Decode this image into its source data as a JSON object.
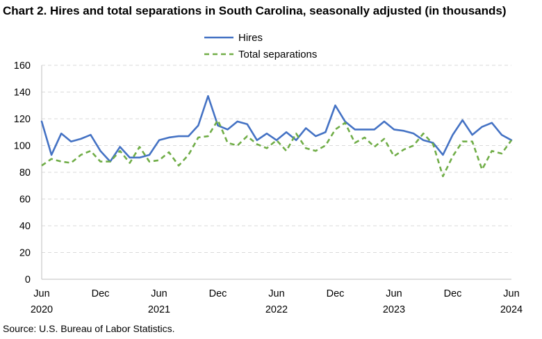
{
  "title": "Chart 2. Hires and total separations in South Carolina, seasonally adjusted (in thousands)",
  "source": "Source: U.S. Bureau of Labor Statistics.",
  "chart_data": {
    "type": "line",
    "title": "Chart 2. Hires and total separations in South Carolina, seasonally adjusted (in thousands)",
    "xlabel": "",
    "ylabel": "",
    "ylim": [
      0,
      160
    ],
    "yticks": [
      0,
      20,
      40,
      60,
      80,
      100,
      120,
      140,
      160
    ],
    "grid": "horizontal dashed",
    "legend_position": "top-center",
    "x": [
      "2020-06",
      "2020-07",
      "2020-08",
      "2020-09",
      "2020-10",
      "2020-11",
      "2020-12",
      "2021-01",
      "2021-02",
      "2021-03",
      "2021-04",
      "2021-05",
      "2021-06",
      "2021-07",
      "2021-08",
      "2021-09",
      "2021-10",
      "2021-11",
      "2021-12",
      "2022-01",
      "2022-02",
      "2022-03",
      "2022-04",
      "2022-05",
      "2022-06",
      "2022-07",
      "2022-08",
      "2022-09",
      "2022-10",
      "2022-11",
      "2022-12",
      "2023-01",
      "2023-02",
      "2023-03",
      "2023-04",
      "2023-05",
      "2023-06",
      "2023-07",
      "2023-08",
      "2023-09",
      "2023-10",
      "2023-11",
      "2023-12",
      "2024-01",
      "2024-02",
      "2024-03",
      "2024-04",
      "2024-05",
      "2024-06"
    ],
    "x_tick_labels": [
      {
        "month": "Jun",
        "year": "2020"
      },
      {
        "month": "Dec",
        "year": ""
      },
      {
        "month": "Jun",
        "year": "2021"
      },
      {
        "month": "Dec",
        "year": ""
      },
      {
        "month": "Jun",
        "year": "2022"
      },
      {
        "month": "Dec",
        "year": ""
      },
      {
        "month": "Jun",
        "year": "2023"
      },
      {
        "month": "Dec",
        "year": ""
      },
      {
        "month": "Jun",
        "year": "2024"
      }
    ],
    "series": [
      {
        "name": "Hires",
        "color": "#4472C4",
        "style": "solid",
        "values": [
          118,
          93,
          109,
          103,
          105,
          108,
          96,
          88,
          99,
          91,
          91,
          93,
          104,
          106,
          107,
          107,
          115,
          137,
          115,
          112,
          118,
          116,
          104,
          109,
          104,
          110,
          104,
          113,
          107,
          110,
          130,
          118,
          112,
          112,
          112,
          118,
          112,
          111,
          109,
          104,
          102,
          93,
          108,
          119,
          108,
          114,
          117,
          108,
          104
        ]
      },
      {
        "name": "Total separations",
        "color": "#70AD47",
        "style": "dashed",
        "values": [
          85,
          90,
          88,
          87,
          93,
          96,
          88,
          88,
          96,
          87,
          99,
          88,
          89,
          95,
          85,
          93,
          106,
          107,
          119,
          102,
          100,
          107,
          101,
          98,
          104,
          96,
          109,
          98,
          96,
          100,
          112,
          117,
          102,
          106,
          99,
          105,
          92,
          97,
          100,
          109,
          101,
          77,
          92,
          103,
          103,
          82,
          96,
          94,
          104
        ]
      }
    ]
  }
}
